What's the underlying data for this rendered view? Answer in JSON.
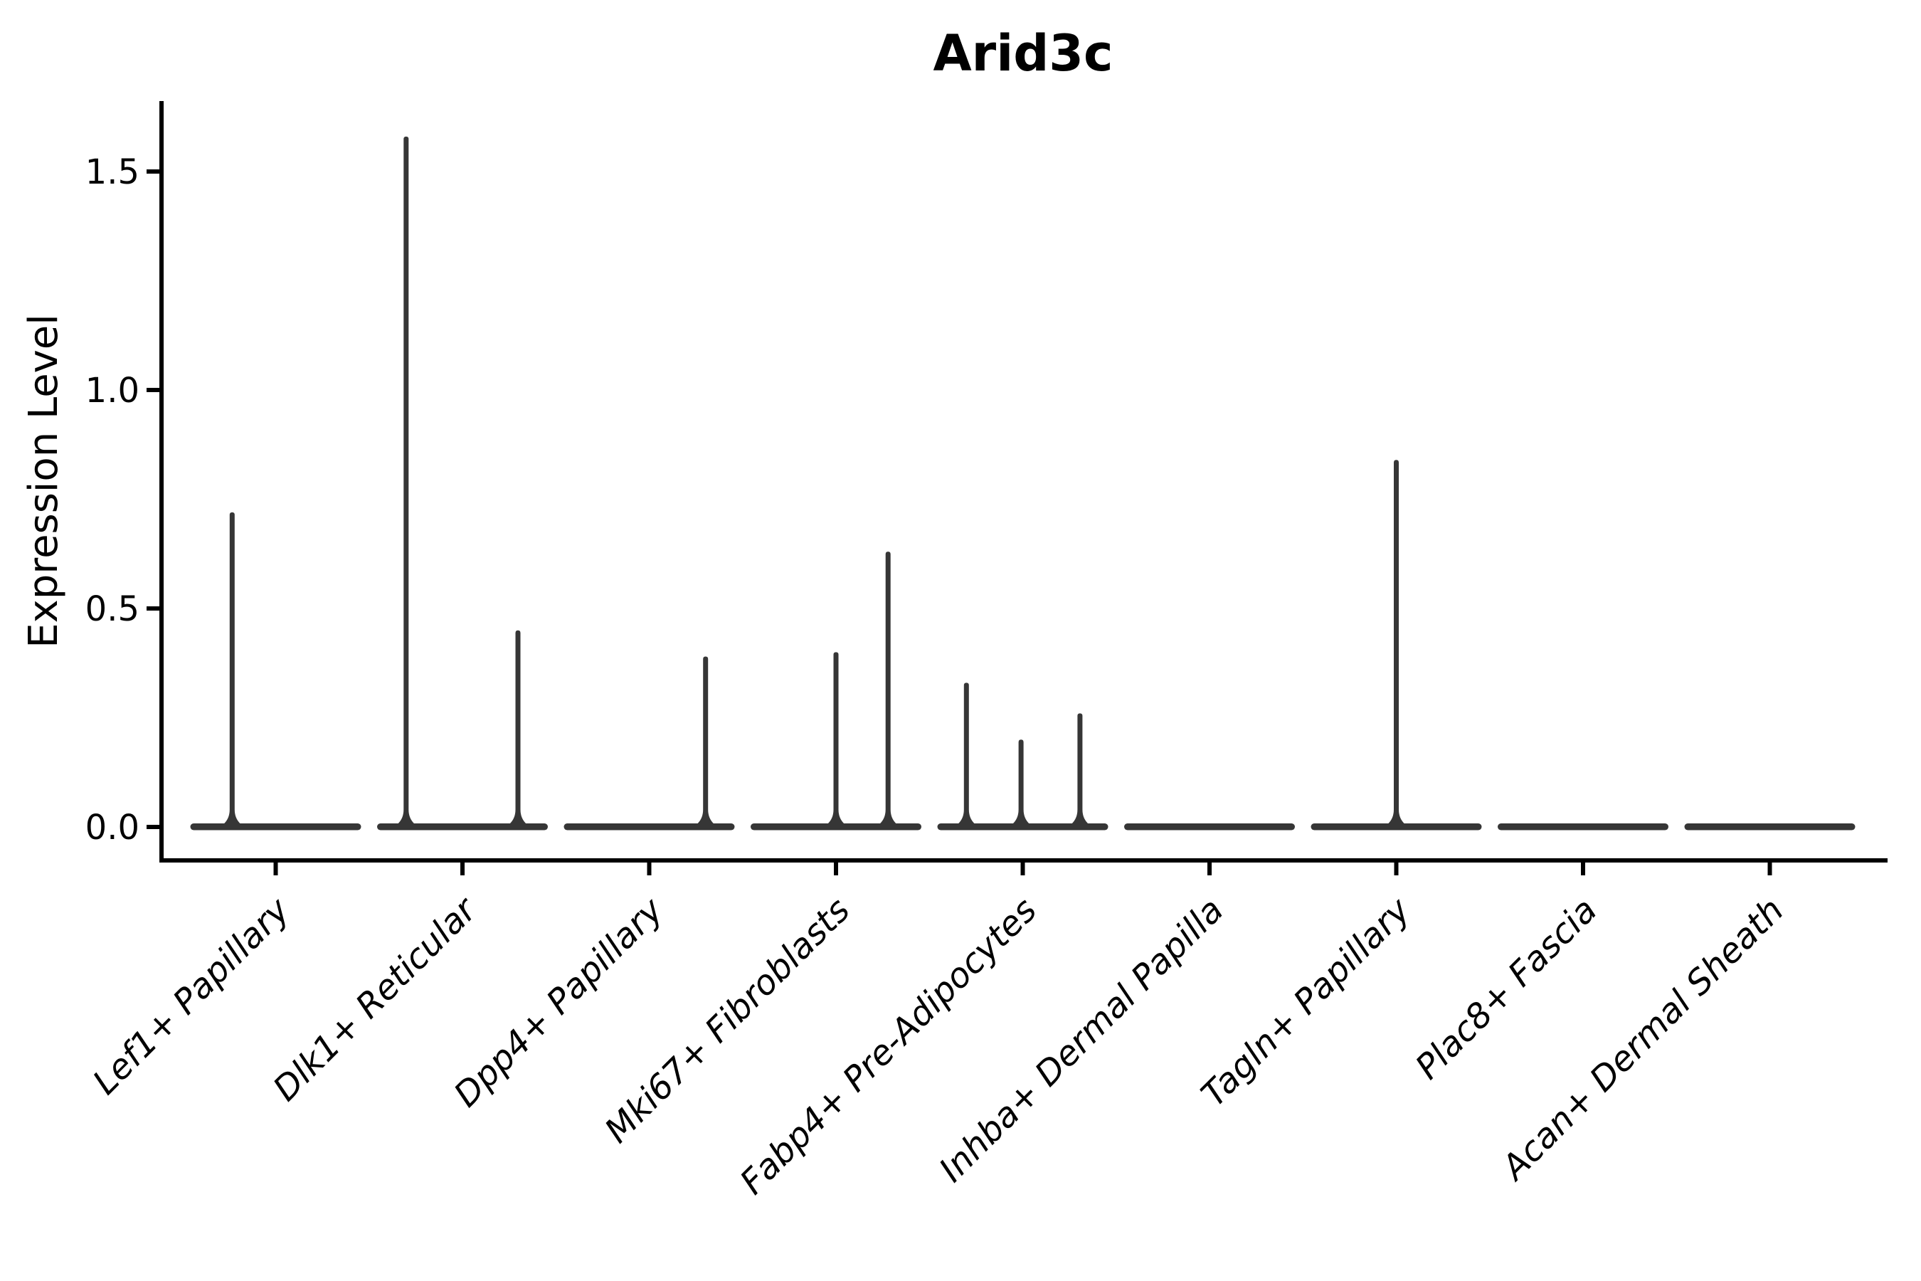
{
  "chart_data": {
    "type": "violin",
    "title": "Arid3c",
    "ylabel": "Expression Level",
    "xlabel": "",
    "grid": false,
    "legend": "none",
    "x_tick_rotation_deg": 45,
    "x_tick_style": "italic",
    "ylim": [
      -0.08,
      1.66
    ],
    "baseline_value": 0,
    "y_ticks": [
      {
        "label": "0.0",
        "value": 0.0
      },
      {
        "label": "0.5",
        "value": 0.5
      },
      {
        "label": "1.0",
        "value": 1.0
      },
      {
        "label": "1.5",
        "value": 1.5
      }
    ],
    "categories": [
      "Lef1+ Papillary",
      "Dlk1+ Reticular",
      "Dpp4+ Papillary",
      "Mki67+ Fibroblasts",
      "Fabp4+ Pre-Adipocytes",
      "Inhba+ Dermal Papilla",
      "Tagln+ Papillary",
      "Plac8+ Fascia",
      "Acan+ Dermal Sheath"
    ],
    "series": [
      {
        "category": "Lef1+ Papillary",
        "spikes": [
          {
            "offset_frac": 0.245,
            "value": 0.72
          }
        ]
      },
      {
        "category": "Dlk1+ Reticular",
        "spikes": [
          {
            "offset_frac": 0.17,
            "value": 1.58
          },
          {
            "offset_frac": 0.825,
            "value": 0.45
          }
        ]
      },
      {
        "category": "Dpp4+ Papillary",
        "spikes": [
          {
            "offset_frac": 0.83,
            "value": 0.39
          }
        ]
      },
      {
        "category": "Mki67+ Fibroblasts",
        "spikes": [
          {
            "offset_frac": 0.5,
            "value": 0.4
          },
          {
            "offset_frac": 0.805,
            "value": 0.63
          }
        ]
      },
      {
        "category": "Fabp4+ Pre-Adipocytes",
        "spikes": [
          {
            "offset_frac": 0.17,
            "value": 0.33
          },
          {
            "offset_frac": 0.49,
            "value": 0.2
          },
          {
            "offset_frac": 0.835,
            "value": 0.26
          }
        ]
      },
      {
        "category": "Inhba+ Dermal Papilla",
        "spikes": []
      },
      {
        "category": "Tagln+ Papillary",
        "spikes": [
          {
            "offset_frac": 0.5,
            "value": 0.84
          }
        ]
      },
      {
        "category": "Plac8+ Fascia",
        "spikes": []
      },
      {
        "category": "Acan+ Dermal Sheath",
        "spikes": []
      }
    ],
    "colors": {
      "violin": "#363636",
      "axis": "#000000",
      "text": "#000000",
      "background": "#ffffff"
    }
  }
}
